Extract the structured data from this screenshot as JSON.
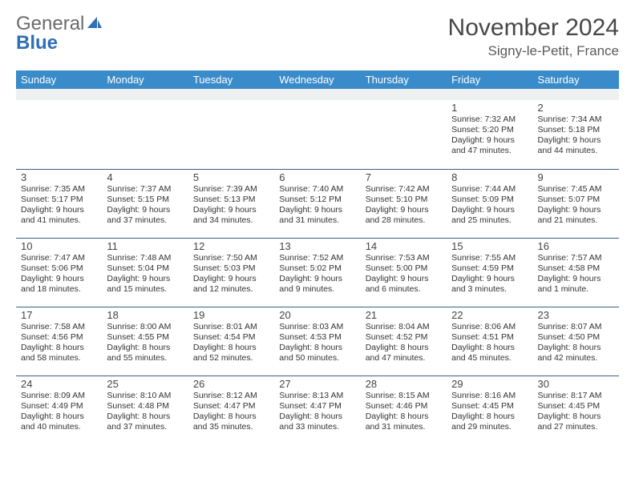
{
  "logo": {
    "text1": "General",
    "text2": "Blue"
  },
  "title": "November 2024",
  "location": "Signy-le-Petit, France",
  "colors": {
    "header_bg": "#3a8bc9",
    "header_fg": "#ffffff",
    "spacer_bg": "#eef0f2",
    "divider": "#3a5f8a",
    "logo_gray": "#6a6a6a",
    "logo_blue": "#2e6fb5"
  },
  "days_of_week": [
    "Sunday",
    "Monday",
    "Tuesday",
    "Wednesday",
    "Thursday",
    "Friday",
    "Saturday"
  ],
  "weeks": [
    [
      null,
      null,
      null,
      null,
      null,
      {
        "n": "1",
        "sunrise": "7:32 AM",
        "sunset": "5:20 PM",
        "dl1": "Daylight: 9 hours",
        "dl2": "and 47 minutes."
      },
      {
        "n": "2",
        "sunrise": "7:34 AM",
        "sunset": "5:18 PM",
        "dl1": "Daylight: 9 hours",
        "dl2": "and 44 minutes."
      }
    ],
    [
      {
        "n": "3",
        "sunrise": "7:35 AM",
        "sunset": "5:17 PM",
        "dl1": "Daylight: 9 hours",
        "dl2": "and 41 minutes."
      },
      {
        "n": "4",
        "sunrise": "7:37 AM",
        "sunset": "5:15 PM",
        "dl1": "Daylight: 9 hours",
        "dl2": "and 37 minutes."
      },
      {
        "n": "5",
        "sunrise": "7:39 AM",
        "sunset": "5:13 PM",
        "dl1": "Daylight: 9 hours",
        "dl2": "and 34 minutes."
      },
      {
        "n": "6",
        "sunrise": "7:40 AM",
        "sunset": "5:12 PM",
        "dl1": "Daylight: 9 hours",
        "dl2": "and 31 minutes."
      },
      {
        "n": "7",
        "sunrise": "7:42 AM",
        "sunset": "5:10 PM",
        "dl1": "Daylight: 9 hours",
        "dl2": "and 28 minutes."
      },
      {
        "n": "8",
        "sunrise": "7:44 AM",
        "sunset": "5:09 PM",
        "dl1": "Daylight: 9 hours",
        "dl2": "and 25 minutes."
      },
      {
        "n": "9",
        "sunrise": "7:45 AM",
        "sunset": "5:07 PM",
        "dl1": "Daylight: 9 hours",
        "dl2": "and 21 minutes."
      }
    ],
    [
      {
        "n": "10",
        "sunrise": "7:47 AM",
        "sunset": "5:06 PM",
        "dl1": "Daylight: 9 hours",
        "dl2": "and 18 minutes."
      },
      {
        "n": "11",
        "sunrise": "7:48 AM",
        "sunset": "5:04 PM",
        "dl1": "Daylight: 9 hours",
        "dl2": "and 15 minutes."
      },
      {
        "n": "12",
        "sunrise": "7:50 AM",
        "sunset": "5:03 PM",
        "dl1": "Daylight: 9 hours",
        "dl2": "and 12 minutes."
      },
      {
        "n": "13",
        "sunrise": "7:52 AM",
        "sunset": "5:02 PM",
        "dl1": "Daylight: 9 hours",
        "dl2": "and 9 minutes."
      },
      {
        "n": "14",
        "sunrise": "7:53 AM",
        "sunset": "5:00 PM",
        "dl1": "Daylight: 9 hours",
        "dl2": "and 6 minutes."
      },
      {
        "n": "15",
        "sunrise": "7:55 AM",
        "sunset": "4:59 PM",
        "dl1": "Daylight: 9 hours",
        "dl2": "and 3 minutes."
      },
      {
        "n": "16",
        "sunrise": "7:57 AM",
        "sunset": "4:58 PM",
        "dl1": "Daylight: 9 hours",
        "dl2": "and 1 minute."
      }
    ],
    [
      {
        "n": "17",
        "sunrise": "7:58 AM",
        "sunset": "4:56 PM",
        "dl1": "Daylight: 8 hours",
        "dl2": "and 58 minutes."
      },
      {
        "n": "18",
        "sunrise": "8:00 AM",
        "sunset": "4:55 PM",
        "dl1": "Daylight: 8 hours",
        "dl2": "and 55 minutes."
      },
      {
        "n": "19",
        "sunrise": "8:01 AM",
        "sunset": "4:54 PM",
        "dl1": "Daylight: 8 hours",
        "dl2": "and 52 minutes."
      },
      {
        "n": "20",
        "sunrise": "8:03 AM",
        "sunset": "4:53 PM",
        "dl1": "Daylight: 8 hours",
        "dl2": "and 50 minutes."
      },
      {
        "n": "21",
        "sunrise": "8:04 AM",
        "sunset": "4:52 PM",
        "dl1": "Daylight: 8 hours",
        "dl2": "and 47 minutes."
      },
      {
        "n": "22",
        "sunrise": "8:06 AM",
        "sunset": "4:51 PM",
        "dl1": "Daylight: 8 hours",
        "dl2": "and 45 minutes."
      },
      {
        "n": "23",
        "sunrise": "8:07 AM",
        "sunset": "4:50 PM",
        "dl1": "Daylight: 8 hours",
        "dl2": "and 42 minutes."
      }
    ],
    [
      {
        "n": "24",
        "sunrise": "8:09 AM",
        "sunset": "4:49 PM",
        "dl1": "Daylight: 8 hours",
        "dl2": "and 40 minutes."
      },
      {
        "n": "25",
        "sunrise": "8:10 AM",
        "sunset": "4:48 PM",
        "dl1": "Daylight: 8 hours",
        "dl2": "and 37 minutes."
      },
      {
        "n": "26",
        "sunrise": "8:12 AM",
        "sunset": "4:47 PM",
        "dl1": "Daylight: 8 hours",
        "dl2": "and 35 minutes."
      },
      {
        "n": "27",
        "sunrise": "8:13 AM",
        "sunset": "4:47 PM",
        "dl1": "Daylight: 8 hours",
        "dl2": "and 33 minutes."
      },
      {
        "n": "28",
        "sunrise": "8:15 AM",
        "sunset": "4:46 PM",
        "dl1": "Daylight: 8 hours",
        "dl2": "and 31 minutes."
      },
      {
        "n": "29",
        "sunrise": "8:16 AM",
        "sunset": "4:45 PM",
        "dl1": "Daylight: 8 hours",
        "dl2": "and 29 minutes."
      },
      {
        "n": "30",
        "sunrise": "8:17 AM",
        "sunset": "4:45 PM",
        "dl1": "Daylight: 8 hours",
        "dl2": "and 27 minutes."
      }
    ]
  ]
}
